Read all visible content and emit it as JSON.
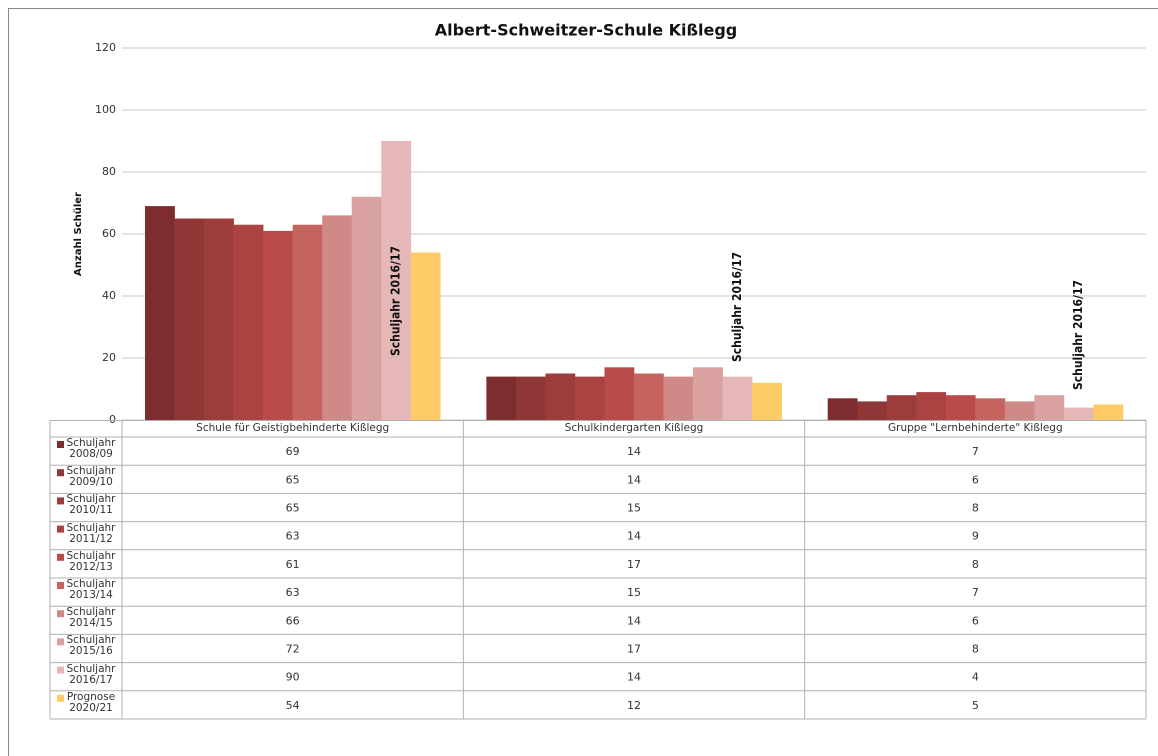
{
  "chart_data": {
    "type": "bar",
    "title": "Albert-Schweitzer-Schule Kißlegg",
    "ylabel": "Anzahl Schüler",
    "categories": [
      "Schule für Geistigbehinderte Kißlegg",
      "Schulkindergarten Kißlegg",
      "Gruppe \"Lernbehinderte\" Kißlegg"
    ],
    "series": [
      {
        "name": "Schuljahr 2008/09",
        "color": "#7d2c2f",
        "values": [
          69,
          14,
          7
        ]
      },
      {
        "name": "Schuljahr 2009/10",
        "color": "#8f3636",
        "values": [
          65,
          14,
          6
        ]
      },
      {
        "name": "Schuljahr 2010/11",
        "color": "#9c3c3b",
        "values": [
          65,
          15,
          8
        ]
      },
      {
        "name": "Schuljahr 2011/12",
        "color": "#aa4342",
        "values": [
          63,
          14,
          9
        ]
      },
      {
        "name": "Schuljahr 2012/13",
        "color": "#b94b48",
        "values": [
          61,
          17,
          8
        ]
      },
      {
        "name": "Schuljahr 2013/14",
        "color": "#c5645f",
        "values": [
          63,
          15,
          7
        ]
      },
      {
        "name": "Schuljahr 2014/15",
        "color": "#cf8987",
        "values": [
          66,
          14,
          6
        ]
      },
      {
        "name": "Schuljahr 2015/16",
        "color": "#d9a1a0",
        "values": [
          72,
          17,
          8
        ]
      },
      {
        "name": "Schuljahr 2016/17",
        "color": "#e5b8b7",
        "values": [
          90,
          14,
          4
        ]
      },
      {
        "name": "Prognose 2020/21",
        "color": "#ffcb66",
        "values": [
          54,
          12,
          5
        ]
      }
    ],
    "annotations": [
      "Schuljahr 2016/17",
      "Schuljahr 2016/17",
      "Schuljahr 2016/17"
    ],
    "ylim": [
      0,
      120
    ],
    "yticks": [
      0,
      20,
      40,
      60,
      80,
      100,
      120
    ],
    "grid": true
  }
}
